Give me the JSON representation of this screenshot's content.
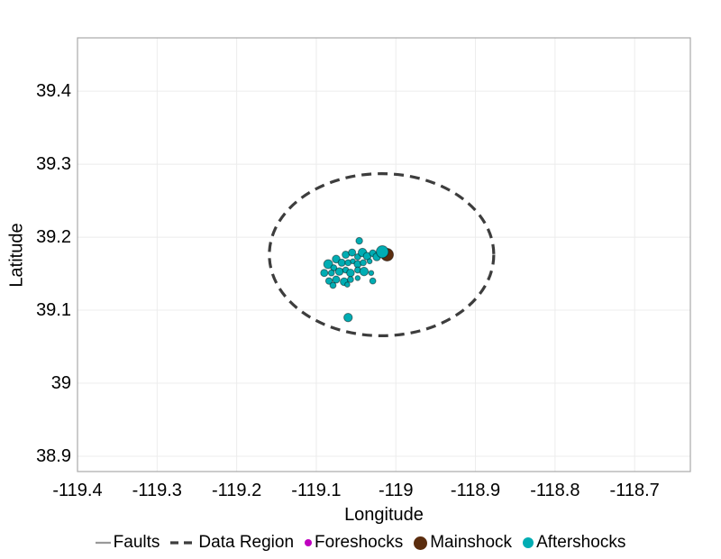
{
  "chart_data": {
    "type": "scatter",
    "title": "",
    "xlabel": "Longitude",
    "ylabel": "Latitude",
    "xlim": [
      -119.4,
      -118.63
    ],
    "ylim": [
      38.879,
      39.473
    ],
    "grid": true,
    "grid_color": "#ececec",
    "border_color": "#a9a9a9",
    "background": "#ffffff",
    "xticks": [
      {
        "v": -119.4,
        "label": "-119.4"
      },
      {
        "v": -119.3,
        "label": "-119.3"
      },
      {
        "v": -119.2,
        "label": "-119.2"
      },
      {
        "v": -119.1,
        "label": "-119.1"
      },
      {
        "v": -119.0,
        "label": "-119"
      },
      {
        "v": -118.9,
        "label": "-118.9"
      },
      {
        "v": -118.8,
        "label": "-118.8"
      },
      {
        "v": -118.7,
        "label": "-118.7"
      }
    ],
    "yticks": [
      {
        "v": 39.4,
        "label": "39.4"
      },
      {
        "v": 39.3,
        "label": "39.3"
      },
      {
        "v": 39.2,
        "label": "39.2"
      },
      {
        "v": 39.1,
        "label": "39.1"
      },
      {
        "v": 39.0,
        "label": "39"
      },
      {
        "v": 38.9,
        "label": "38.9"
      }
    ],
    "data_region": {
      "center": [
        -119.018,
        39.176
      ],
      "semi_x": 0.141,
      "semi_y": 0.111,
      "color": "#3d3d3d",
      "stroke_width": 3.2,
      "dash": "11 7"
    },
    "series": {
      "faults": {
        "color": "#999999",
        "lines": []
      },
      "foreshocks": {
        "color": "#bf00bf",
        "points": []
      },
      "mainshock": {
        "color": "#5b2d0e",
        "points": [
          [
            -119.011,
            39.176,
            7.0
          ]
        ]
      },
      "aftershocks": {
        "color": "#00adb3",
        "points": [
          [
            -119.046,
            39.195,
            3.7
          ],
          [
            -119.063,
            39.176,
            4.0
          ],
          [
            -119.055,
            39.179,
            4.0
          ],
          [
            -119.048,
            39.173,
            3.4
          ],
          [
            -119.042,
            39.179,
            4.7
          ],
          [
            -119.036,
            39.174,
            4.3
          ],
          [
            -119.029,
            39.178,
            3.7
          ],
          [
            -119.024,
            39.173,
            4.3
          ],
          [
            -119.017,
            39.18,
            6.7
          ],
          [
            -119.085,
            39.163,
            5.0
          ],
          [
            -119.075,
            39.17,
            4.3
          ],
          [
            -119.068,
            39.165,
            4.0
          ],
          [
            -119.06,
            39.165,
            3.4
          ],
          [
            -119.054,
            39.167,
            2.8
          ],
          [
            -119.048,
            39.163,
            4.0
          ],
          [
            -119.041,
            39.165,
            3.4
          ],
          [
            -119.033,
            39.167,
            2.8
          ],
          [
            -119.078,
            39.158,
            3.4
          ],
          [
            -119.09,
            39.151,
            4.0
          ],
          [
            -119.081,
            39.151,
            3.4
          ],
          [
            -119.071,
            39.153,
            4.3
          ],
          [
            -119.063,
            39.155,
            3.4
          ],
          [
            -119.057,
            39.151,
            4.3
          ],
          [
            -119.048,
            39.155,
            3.4
          ],
          [
            -119.04,
            39.153,
            4.7
          ],
          [
            -119.031,
            39.151,
            2.8
          ],
          [
            -119.084,
            39.14,
            3.7
          ],
          [
            -119.075,
            39.142,
            4.0
          ],
          [
            -119.065,
            39.139,
            4.3
          ],
          [
            -119.057,
            39.142,
            3.4
          ],
          [
            -119.048,
            39.144,
            2.8
          ],
          [
            -119.029,
            39.14,
            3.4
          ],
          [
            -119.079,
            39.134,
            3.4
          ],
          [
            -119.061,
            39.135,
            2.8
          ],
          [
            -119.06,
            39.09,
            4.7
          ]
        ]
      }
    },
    "marker_stroke": "rgba(0,0,0,0.45)",
    "legend": {
      "position": "bottom",
      "items": [
        {
          "key": "faults",
          "label": "Faults",
          "marker": "line",
          "color": "#999999",
          "size": 17
        },
        {
          "key": "data-region",
          "label": "Data Region",
          "marker": "dashed-line",
          "color": "#3d3d3d",
          "size": 28
        },
        {
          "key": "foreshocks",
          "label": "Foreshocks",
          "marker": "dot",
          "color": "#bf00bf",
          "size": 8
        },
        {
          "key": "mainshock",
          "label": "Mainshock",
          "marker": "dot",
          "color": "#5b2d0e",
          "size": 15
        },
        {
          "key": "aftershocks",
          "label": "Aftershocks",
          "marker": "dot",
          "color": "#00adb3",
          "size": 12
        }
      ]
    }
  }
}
